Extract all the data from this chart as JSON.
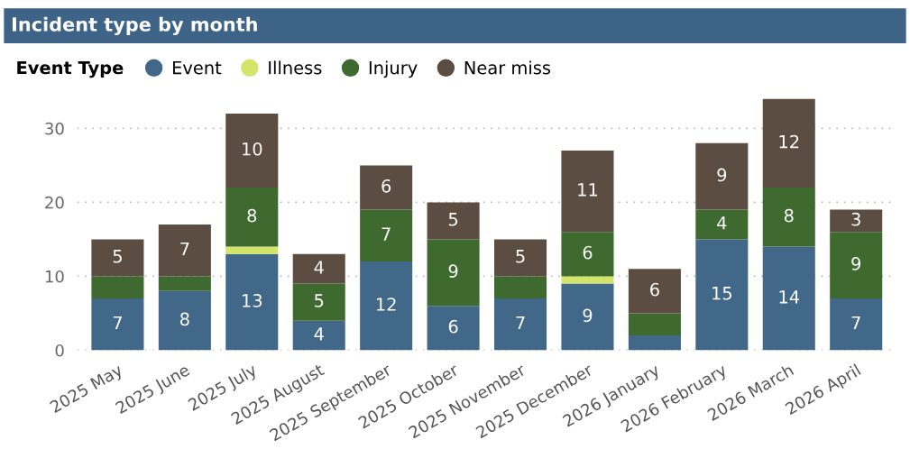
{
  "chart_data": {
    "type": "bar",
    "title": "Incident type by month",
    "legend_title": "Event Type",
    "stacked": true,
    "categories": [
      "2025 May",
      "2025 June",
      "2025 July",
      "2025 August",
      "2025 September",
      "2025 October",
      "2025 November",
      "2025 December",
      "2026 January",
      "2026 February",
      "2026 March",
      "2026 April"
    ],
    "series": [
      {
        "name": "Event",
        "color": "#416889",
        "values": [
          7,
          8,
          13,
          4,
          12,
          6,
          7,
          9,
          2,
          15,
          14,
          7
        ],
        "value_labels": [
          "7",
          "8",
          "13",
          "4",
          "12",
          "6",
          "7",
          "9",
          null,
          "15",
          "14",
          "7"
        ]
      },
      {
        "name": "Illness",
        "color": "#d3e46a",
        "values": [
          0,
          0,
          1,
          0,
          0,
          0,
          0,
          1,
          0,
          0,
          0,
          0
        ],
        "value_labels": [
          null,
          null,
          null,
          null,
          null,
          null,
          null,
          null,
          null,
          null,
          null,
          null
        ]
      },
      {
        "name": "Injury",
        "color": "#3f6a2f",
        "values": [
          3,
          2,
          8,
          5,
          7,
          9,
          3,
          6,
          3,
          4,
          8,
          9
        ],
        "value_labels": [
          null,
          null,
          "8",
          "5",
          "7",
          "9",
          null,
          "6",
          null,
          "4",
          "8",
          "9"
        ]
      },
      {
        "name": "Near miss",
        "color": "#5c4d42",
        "values": [
          5,
          7,
          10,
          4,
          6,
          5,
          5,
          11,
          6,
          9,
          12,
          3
        ],
        "value_labels": [
          "5",
          "7",
          "10",
          "4",
          "6",
          "5",
          "5",
          "11",
          "6",
          "9",
          "12",
          "3"
        ]
      }
    ],
    "ylim": [
      0,
      34
    ],
    "yticks": [
      0,
      10,
      20,
      30
    ],
    "grid": "y",
    "legend": "top left"
  }
}
